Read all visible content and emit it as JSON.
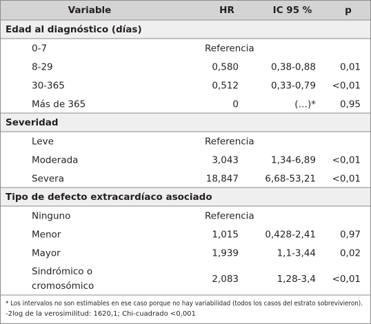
{
  "table": {
    "header": [
      "Variable",
      "HR",
      "IC 95 %",
      "p"
    ],
    "sections": [
      {
        "title": "Edad al diagnóstico (días)",
        "rows": [
          {
            "label": "0-7",
            "hr": "Referencia"
          },
          {
            "label": "8-29",
            "hr": "0,580",
            "ic": "0,38-0,88",
            "p": "0,01"
          },
          {
            "label": "30-365",
            "hr": "0,512",
            "ic": "0,33-0,79",
            "p": "<0,01"
          },
          {
            "label": "Más de 365",
            "hr": "0",
            "ic": "(…)*",
            "p": "0,95"
          }
        ]
      },
      {
        "title": "Severidad",
        "rows": [
          {
            "label": "Leve",
            "hr": "Referencia"
          },
          {
            "label": "Moderada",
            "hr": "3,043",
            "ic": "1,34-6,89",
            "p": "<0,01"
          },
          {
            "label": "Severa",
            "hr": "18,847",
            "ic": "6,68-53,21",
            "p": "<0,01"
          }
        ]
      },
      {
        "title": "Tipo de defecto extracardíaco asociado",
        "rows": [
          {
            "label": "Ninguno",
            "hr": "Referencia"
          },
          {
            "label": "Menor",
            "hr": "1,015",
            "ic": "0,428-2,41",
            "p": "0,97"
          },
          {
            "label": "Mayor",
            "hr": "1,939",
            "ic": "1,1-3,44",
            "p": "0,02"
          },
          {
            "label": [
              "Sindrómico o",
              "cromosómico"
            ],
            "hr": "2,083",
            "ic": "1,28-3,4",
            "p": "<0,01"
          }
        ]
      }
    ],
    "footnotes": [
      "* Los intervalos no son estimables en ese caso porque no hay variabilidad (todos los casos del estrato sobrevivieron).",
      "-2log de la verosimilitud: 1620,1;  Chi-cuadrado <0,001"
    ]
  }
}
